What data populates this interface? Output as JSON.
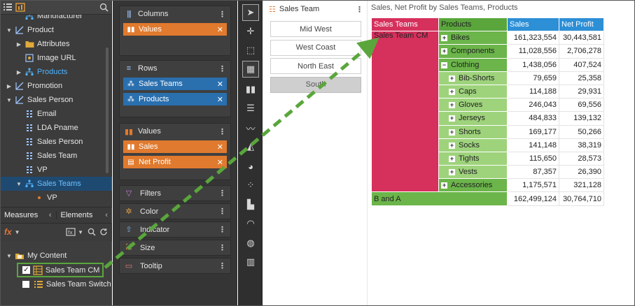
{
  "left_panel": {
    "tree": [
      {
        "label": "Manufacturer",
        "icon": "hierarchy-icon",
        "arrow": "",
        "indent": 1
      },
      {
        "label": "Product",
        "icon": "dimension-icon",
        "arrow": "▼",
        "indent": 0
      },
      {
        "label": "Attributes",
        "icon": "folder-icon",
        "arrow": "▶",
        "indent": 1
      },
      {
        "label": "Image URL",
        "icon": "image-url-icon",
        "arrow": "",
        "indent": 1
      },
      {
        "label": "Products",
        "icon": "hierarchy-icon",
        "arrow": "▶",
        "indent": 1,
        "highlight": true
      },
      {
        "label": "Promotion",
        "icon": "dimension-icon",
        "arrow": "▶",
        "indent": 0
      },
      {
        "label": "Sales Person",
        "icon": "dimension-icon",
        "arrow": "▼",
        "indent": 0
      },
      {
        "label": "Email",
        "icon": "attribute-icon",
        "arrow": "",
        "indent": 1
      },
      {
        "label": "LDA Pname",
        "icon": "attribute-icon",
        "arrow": "",
        "indent": 1
      },
      {
        "label": "Sales Person",
        "icon": "attribute-icon",
        "arrow": "",
        "indent": 1
      },
      {
        "label": "Sales Team",
        "icon": "attribute-icon",
        "arrow": "",
        "indent": 1
      },
      {
        "label": "VP",
        "icon": "attribute-icon",
        "arrow": "",
        "indent": 1
      },
      {
        "label": "Sales Teams",
        "icon": "hierarchy-icon",
        "arrow": "▼",
        "indent": 1,
        "selected": true
      },
      {
        "label": "VP",
        "icon": "level-dot-icon",
        "arrow": "",
        "indent": 2
      }
    ],
    "tabs": {
      "measures": "Measures",
      "elements": "Elements"
    },
    "my_content": {
      "root": "My Content",
      "items": [
        {
          "label": "Sales Team CM",
          "checked": true
        },
        {
          "label": "Sales Team Switch",
          "checked": false
        }
      ]
    }
  },
  "wells": {
    "columns": {
      "title": "Columns",
      "chips": [
        "Values"
      ]
    },
    "rows": {
      "title": "Rows",
      "chips": [
        "Sales Teams",
        "Products"
      ]
    },
    "values": {
      "title": "Values",
      "chips": [
        "Sales",
        "Net Profit"
      ]
    },
    "props": [
      "Filters",
      "Color",
      "Indicator",
      "Size",
      "Tooltip"
    ]
  },
  "slicer": {
    "title": "Sales Team",
    "items": [
      {
        "label": "Mid West",
        "dim": false
      },
      {
        "label": "West Coast",
        "dim": false
      },
      {
        "label": "North East",
        "dim": false
      },
      {
        "label": "South",
        "dim": true
      }
    ]
  },
  "pivot": {
    "title": "Sales, Net Profit by Sales Teams, Products",
    "headers": [
      "Sales Teams",
      "Products",
      "Sales",
      "Net Profit"
    ],
    "team": "Sales Team CM",
    "rows": [
      {
        "product": "Bikes",
        "level": 0,
        "sales": "161,323,554",
        "profit": "30,443,581",
        "expander": "+"
      },
      {
        "product": "Components",
        "level": 0,
        "sales": "11,028,556",
        "profit": "2,706,278",
        "expander": "+"
      },
      {
        "product": "Clothing",
        "level": 0,
        "sales": "1,438,056",
        "profit": "407,524",
        "expander": "−"
      },
      {
        "product": "Bib-Shorts",
        "level": 1,
        "sales": "79,659",
        "profit": "25,358",
        "expander": "+"
      },
      {
        "product": "Caps",
        "level": 1,
        "sales": "114,188",
        "profit": "29,931",
        "expander": "+"
      },
      {
        "product": "Gloves",
        "level": 1,
        "sales": "246,043",
        "profit": "69,556",
        "expander": "+"
      },
      {
        "product": "Jerseys",
        "level": 1,
        "sales": "484,833",
        "profit": "139,132",
        "expander": "+"
      },
      {
        "product": "Shorts",
        "level": 1,
        "sales": "169,177",
        "profit": "50,266",
        "expander": "+"
      },
      {
        "product": "Socks",
        "level": 1,
        "sales": "141,148",
        "profit": "38,319",
        "expander": "+"
      },
      {
        "product": "Tights",
        "level": 1,
        "sales": "115,650",
        "profit": "28,573",
        "expander": "+"
      },
      {
        "product": "Vests",
        "level": 1,
        "sales": "87,357",
        "profit": "26,390",
        "expander": "+"
      },
      {
        "product": "Accessories",
        "level": 0,
        "sales": "1,175,571",
        "profit": "321,128",
        "expander": "+"
      }
    ],
    "total": {
      "label": "B and A",
      "sales": "162,499,124",
      "profit": "30,764,710"
    }
  },
  "colors": {
    "team": "#d6305c",
    "products": "#5aa63c",
    "measures": "#2d8fd6",
    "arrow": "#5aa63c"
  }
}
